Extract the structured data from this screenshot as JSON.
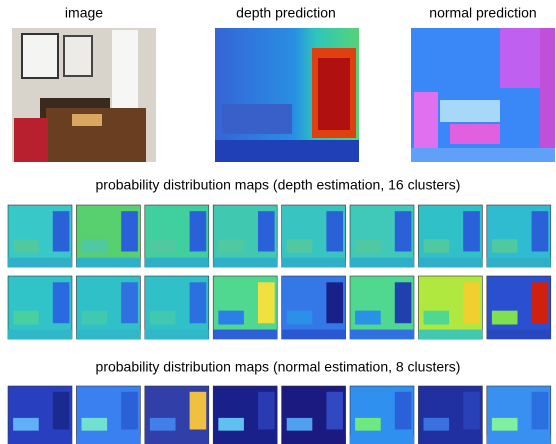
{
  "panels": [
    {
      "label": "image"
    },
    {
      "label": "depth prediction"
    },
    {
      "label": "normal prediction"
    }
  ],
  "sections": [
    {
      "title": "probability distribution maps (depth estimation, 16 clusters)"
    },
    {
      "title": "probability distribution maps (normal estimation, 8 clusters)"
    }
  ]
}
